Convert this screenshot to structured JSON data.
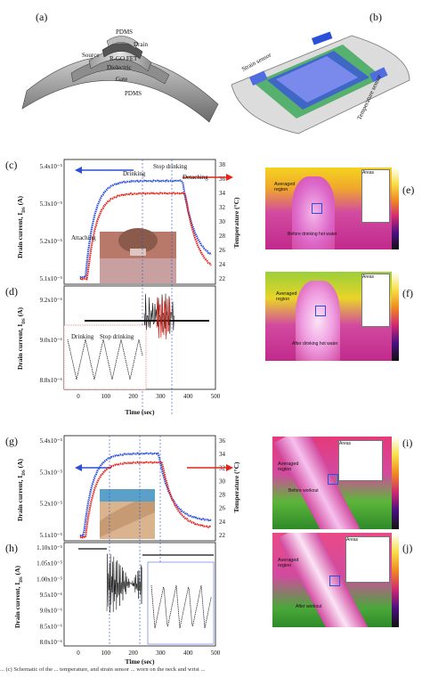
{
  "panel_letters": {
    "a": "(a)",
    "b": "(b)",
    "c": "(c)",
    "d": "(d)",
    "e": "(e)",
    "f": "(f)",
    "g": "(g)",
    "h": "(h)",
    "i": "(i)",
    "j": "(j)"
  },
  "device_a": {
    "layers": [
      "PDMS",
      "Drain",
      "Source",
      "R-GO FET",
      "Dielectric",
      "Gate",
      "PDMS"
    ]
  },
  "device_b": {
    "strain_sensor": "Strain sensor",
    "temperature_sensor": "Temperature sensor"
  },
  "plot_c": {
    "ylabel": "Drain current, I",
    "ylabel_sub": "DS",
    "ylabel_unit": " (A)",
    "y2label": "Temperature (°C)",
    "yticks": [
      "5.4x10⁻⁵",
      "5.3x10⁻⁵",
      "5.2x10⁻⁵",
      "5.1x10⁻⁵"
    ],
    "y2ticks": [
      "38",
      "36",
      "34",
      "32",
      "30",
      "28",
      "26",
      "24",
      "22"
    ],
    "annotations": {
      "attaching": "Attaching",
      "drinking": "Drinking",
      "stop": "Stop drinking",
      "detaching": "Detaching"
    }
  },
  "plot_d": {
    "ylabel": "Drain current, I",
    "ylabel_sub": "DS",
    "ylabel_unit": " (A)",
    "yticks": [
      "9.2x10⁻⁶",
      "9.0x10⁻⁶",
      "8.8x10⁻⁶"
    ],
    "xticks": [
      "0",
      "100",
      "200",
      "300",
      "400",
      "500"
    ],
    "xlabel": "Time (sec)",
    "annotations": {
      "drinking": "Drinking",
      "stop": "Stop drinking"
    }
  },
  "plot_g": {
    "ylabel": "Drain current, I",
    "ylabel_sub": "DS",
    "ylabel_unit": " (A)",
    "y2label": "Temperature (°C)",
    "yticks": [
      "5.4x10⁻⁵",
      "5.3x10⁻⁵",
      "5.2x10⁻⁵",
      "5.1x10⁻⁵"
    ],
    "y2ticks": [
      "36",
      "34",
      "32",
      "30",
      "28",
      "26",
      "24",
      "22"
    ]
  },
  "plot_h": {
    "ylabel": "Drain current, I",
    "ylabel_sub": "DS",
    "ylabel_unit": " (A)",
    "yticks": [
      "1.10x10⁻⁵",
      "1.05x10⁻⁵",
      "1.00x10⁻⁵",
      "9.5x10⁻⁶",
      "9.0x10⁻⁶",
      "8.5x10⁻⁶",
      "8.0x10⁻⁶"
    ],
    "xticks": [
      "0",
      "100",
      "200",
      "300",
      "400",
      "500"
    ],
    "xlabel": "Time (sec)"
  },
  "thermal_e": {
    "averaged": "Averaged region",
    "caption": "Before drinking hot water",
    "areas": "Areas"
  },
  "thermal_f": {
    "averaged": "Averaged region",
    "caption": "After drinking hot water",
    "areas": "Areas"
  },
  "thermal_i": {
    "averaged": "Averaged region",
    "caption": "Before workout",
    "areas": "Areas"
  },
  "thermal_j": {
    "averaged": "Averaged region",
    "caption": "After workout",
    "areas": "Areas"
  },
  "caption_text": "... (c) Schematic of the ... temperature, and strain sensor ... worn on the neck and wrist ...",
  "colors": {
    "blue": "#2b4fd8",
    "red": "#e2231a",
    "black": "#111111"
  }
}
